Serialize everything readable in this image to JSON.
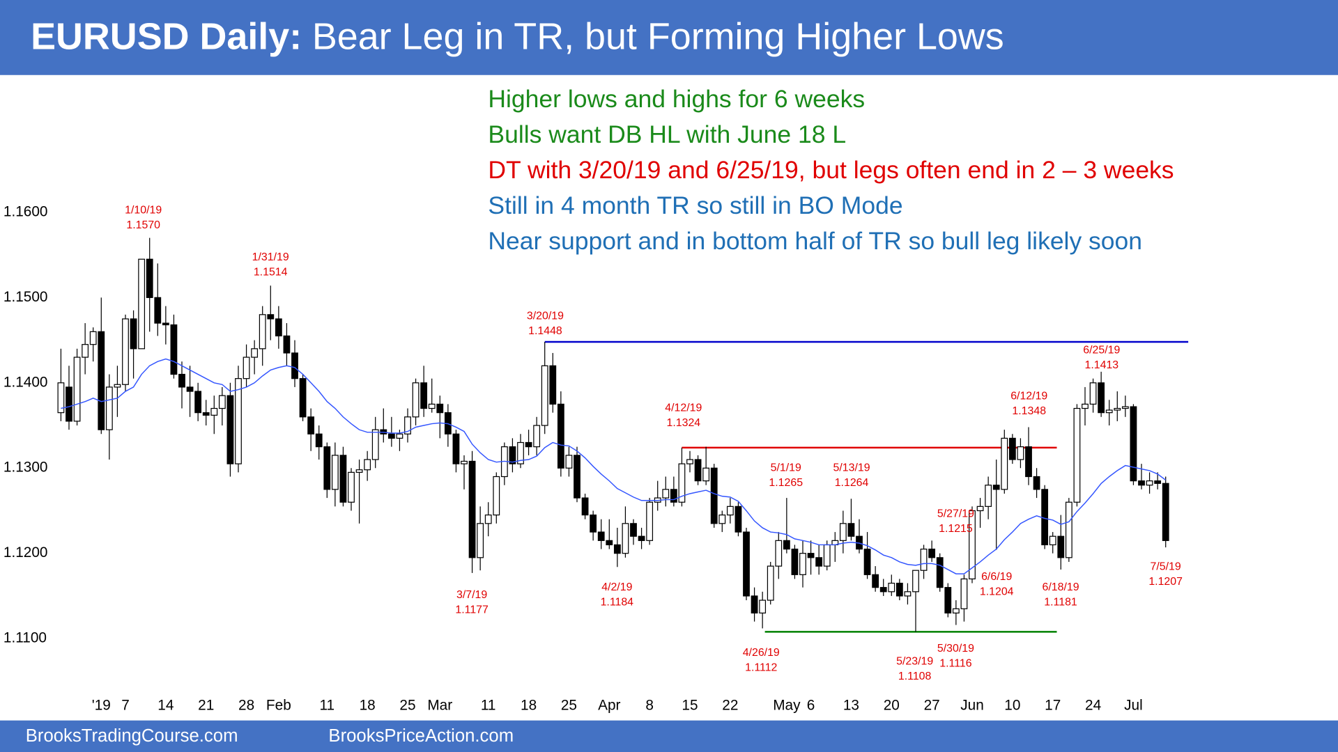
{
  "chart_data": {
    "type": "candlestick",
    "title_lead": "EURUSD Daily:",
    "title": "Bear Leg in TR, but Forming Higher Lows",
    "notes": [
      {
        "text": "Higher lows and highs for 6 weeks",
        "color": "#1a8a1a"
      },
      {
        "text": "Bulls want DB HL with June 18 L",
        "color": "#1a8a1a"
      },
      {
        "text": "DT with 3/20/19 and 6/25/19, but legs often end in 2 – 3 weeks",
        "color": "#e00000"
      },
      {
        "text": "Still in 4 month TR so still in BO Mode",
        "color": "#1f6fb5"
      },
      {
        "text": "Near support and in bottom half of TR so bull leg likely soon",
        "color": "#1f6fb5"
      }
    ],
    "footer": [
      "BrooksTradingCourse.com",
      "BrooksPriceAction.com"
    ],
    "up_color": "#ffffff",
    "down_color": "#000000",
    "ma_color": "#3355ff",
    "ylim": [
      1.1039,
      1.1761
    ],
    "yticks": [
      {
        "value": 1.16,
        "label": "1.1600"
      },
      {
        "value": 1.15,
        "label": "1.1500"
      },
      {
        "value": 1.14,
        "label": "1.1400"
      },
      {
        "value": 1.13,
        "label": "1.1300"
      },
      {
        "value": 1.12,
        "label": "1.1200"
      },
      {
        "value": 1.11,
        "label": "1.1100"
      }
    ],
    "xticks": [
      {
        "value": 5,
        "label": "'19"
      },
      {
        "value": 8,
        "label": "7"
      },
      {
        "value": 13,
        "label": "14"
      },
      {
        "value": 18,
        "label": "21"
      },
      {
        "value": 23,
        "label": "28"
      },
      {
        "value": 27,
        "label": "Feb"
      },
      {
        "value": 33,
        "label": "11"
      },
      {
        "value": 38,
        "label": "18"
      },
      {
        "value": 43,
        "label": "25"
      },
      {
        "value": 47,
        "label": "Mar"
      },
      {
        "value": 53,
        "label": "11"
      },
      {
        "value": 58,
        "label": "18"
      },
      {
        "value": 63,
        "label": "25"
      },
      {
        "value": 68,
        "label": "Apr"
      },
      {
        "value": 73,
        "label": "8"
      },
      {
        "value": 78,
        "label": "15"
      },
      {
        "value": 83,
        "label": "22"
      },
      {
        "value": 90,
        "label": "May"
      },
      {
        "value": 93,
        "label": "6"
      },
      {
        "value": 98,
        "label": "13"
      },
      {
        "value": 103,
        "label": "20"
      },
      {
        "value": 108,
        "label": "27"
      },
      {
        "value": 113,
        "label": "Jun"
      },
      {
        "value": 118,
        "label": "10"
      },
      {
        "value": 123,
        "label": "17"
      },
      {
        "value": 128,
        "label": "24"
      },
      {
        "value": 133,
        "label": "Jul"
      }
    ],
    "ohlc": [
      [
        1.1365,
        1.144,
        1.1355,
        1.14
      ],
      [
        1.1395,
        1.142,
        1.1345,
        1.1355
      ],
      [
        1.1355,
        1.144,
        1.135,
        1.143
      ],
      [
        1.143,
        1.147,
        1.141,
        1.1445
      ],
      [
        1.1445,
        1.1465,
        1.1425,
        1.146
      ],
      [
        1.146,
        1.15,
        1.134,
        1.1345
      ],
      [
        1.1345,
        1.141,
        1.131,
        1.1395
      ],
      [
        1.1395,
        1.142,
        1.136,
        1.1398
      ],
      [
        1.1398,
        1.148,
        1.139,
        1.1475
      ],
      [
        1.1475,
        1.1485,
        1.1405,
        1.144
      ],
      [
        1.144,
        1.1545,
        1.144,
        1.1545
      ],
      [
        1.1545,
        1.157,
        1.146,
        1.15
      ],
      [
        1.15,
        1.154,
        1.1455,
        1.147
      ],
      [
        1.147,
        1.149,
        1.1445,
        1.1468
      ],
      [
        1.1468,
        1.148,
        1.1405,
        1.141
      ],
      [
        1.141,
        1.1425,
        1.137,
        1.1395
      ],
      [
        1.1395,
        1.142,
        1.136,
        1.139
      ],
      [
        1.139,
        1.14,
        1.1355,
        1.1365
      ],
      [
        1.1365,
        1.138,
        1.135,
        1.1362
      ],
      [
        1.1362,
        1.1385,
        1.134,
        1.137
      ],
      [
        1.137,
        1.1395,
        1.135,
        1.1385
      ],
      [
        1.1385,
        1.14,
        1.129,
        1.1305
      ],
      [
        1.1305,
        1.142,
        1.1295,
        1.1405
      ],
      [
        1.1405,
        1.1445,
        1.1395,
        1.143
      ],
      [
        1.143,
        1.145,
        1.141,
        1.144
      ],
      [
        1.144,
        1.149,
        1.142,
        1.148
      ],
      [
        1.148,
        1.1514,
        1.145,
        1.1475
      ],
      [
        1.1475,
        1.149,
        1.144,
        1.1455
      ],
      [
        1.1455,
        1.147,
        1.142,
        1.1435
      ],
      [
        1.1435,
        1.145,
        1.1395,
        1.1405
      ],
      [
        1.1405,
        1.141,
        1.1355,
        1.136
      ],
      [
        1.136,
        1.137,
        1.132,
        1.134
      ],
      [
        1.134,
        1.135,
        1.131,
        1.1325
      ],
      [
        1.1325,
        1.133,
        1.1265,
        1.1275
      ],
      [
        1.1275,
        1.133,
        1.1255,
        1.1315
      ],
      [
        1.1315,
        1.1325,
        1.1255,
        1.126
      ],
      [
        1.126,
        1.13,
        1.125,
        1.1295
      ],
      [
        1.1295,
        1.131,
        1.1235,
        1.1298
      ],
      [
        1.1298,
        1.132,
        1.1285,
        1.131
      ],
      [
        1.131,
        1.136,
        1.13,
        1.1345
      ],
      [
        1.1345,
        1.137,
        1.133,
        1.134
      ],
      [
        1.134,
        1.136,
        1.1325,
        1.1335
      ],
      [
        1.1335,
        1.1345,
        1.132,
        1.134
      ],
      [
        1.134,
        1.137,
        1.133,
        1.136
      ],
      [
        1.136,
        1.1405,
        1.135,
        1.14
      ],
      [
        1.14,
        1.142,
        1.136,
        1.137
      ],
      [
        1.137,
        1.1405,
        1.1365,
        1.1375
      ],
      [
        1.1375,
        1.1385,
        1.1335,
        1.1365
      ],
      [
        1.1365,
        1.1375,
        1.1325,
        1.134
      ],
      [
        1.134,
        1.1345,
        1.1295,
        1.1305
      ],
      [
        1.1305,
        1.1315,
        1.1275,
        1.1308
      ],
      [
        1.1308,
        1.132,
        1.1177,
        1.1195
      ],
      [
        1.1195,
        1.1255,
        1.118,
        1.1235
      ],
      [
        1.1235,
        1.126,
        1.122,
        1.1245
      ],
      [
        1.1245,
        1.1295,
        1.1235,
        1.129
      ],
      [
        1.129,
        1.133,
        1.128,
        1.1325
      ],
      [
        1.1325,
        1.1335,
        1.1295,
        1.1305
      ],
      [
        1.1305,
        1.134,
        1.13,
        1.133
      ],
      [
        1.133,
        1.1345,
        1.1315,
        1.1325
      ],
      [
        1.1325,
        1.136,
        1.1315,
        1.135
      ],
      [
        1.135,
        1.1448,
        1.134,
        1.142
      ],
      [
        1.142,
        1.1435,
        1.1365,
        1.1375
      ],
      [
        1.1375,
        1.139,
        1.129,
        1.13
      ],
      [
        1.13,
        1.1325,
        1.129,
        1.1315
      ],
      [
        1.1315,
        1.1325,
        1.126,
        1.1265
      ],
      [
        1.1265,
        1.127,
        1.124,
        1.1245
      ],
      [
        1.1245,
        1.125,
        1.1215,
        1.1225
      ],
      [
        1.1225,
        1.124,
        1.1205,
        1.1215
      ],
      [
        1.1215,
        1.124,
        1.1205,
        1.121
      ],
      [
        1.121,
        1.123,
        1.1184,
        1.12
      ],
      [
        1.12,
        1.1255,
        1.1195,
        1.1235
      ],
      [
        1.1235,
        1.124,
        1.121,
        1.122
      ],
      [
        1.122,
        1.123,
        1.1205,
        1.1215
      ],
      [
        1.1215,
        1.1265,
        1.121,
        1.126
      ],
      [
        1.126,
        1.1285,
        1.125,
        1.1265
      ],
      [
        1.1265,
        1.129,
        1.1255,
        1.1275
      ],
      [
        1.1275,
        1.129,
        1.1255,
        1.126
      ],
      [
        1.126,
        1.1324,
        1.1255,
        1.1305
      ],
      [
        1.1305,
        1.132,
        1.1295,
        1.131
      ],
      [
        1.131,
        1.1315,
        1.128,
        1.1285
      ],
      [
        1.1285,
        1.1325,
        1.128,
        1.13
      ],
      [
        1.13,
        1.1305,
        1.123,
        1.1235
      ],
      [
        1.1235,
        1.125,
        1.1225,
        1.1245
      ],
      [
        1.1245,
        1.1265,
        1.1235,
        1.1255
      ],
      [
        1.1255,
        1.126,
        1.122,
        1.1225
      ],
      [
        1.1225,
        1.123,
        1.1145,
        1.115
      ],
      [
        1.115,
        1.116,
        1.112,
        1.113
      ],
      [
        1.113,
        1.1155,
        1.1112,
        1.1145
      ],
      [
        1.1145,
        1.119,
        1.114,
        1.1185
      ],
      [
        1.1185,
        1.1225,
        1.117,
        1.1215
      ],
      [
        1.1215,
        1.1265,
        1.12,
        1.1205
      ],
      [
        1.1205,
        1.121,
        1.117,
        1.1175
      ],
      [
        1.1175,
        1.1215,
        1.116,
        1.12
      ],
      [
        1.12,
        1.1215,
        1.1175,
        1.1195
      ],
      [
        1.1195,
        1.121,
        1.1175,
        1.1185
      ],
      [
        1.1185,
        1.1215,
        1.118,
        1.121
      ],
      [
        1.121,
        1.1225,
        1.119,
        1.1215
      ],
      [
        1.1215,
        1.125,
        1.12,
        1.1235
      ],
      [
        1.1235,
        1.1264,
        1.1215,
        1.122
      ],
      [
        1.122,
        1.124,
        1.12,
        1.1205
      ],
      [
        1.1205,
        1.1225,
        1.117,
        1.1175
      ],
      [
        1.1175,
        1.1185,
        1.1155,
        1.116
      ],
      [
        1.116,
        1.117,
        1.115,
        1.1155
      ],
      [
        1.1155,
        1.1175,
        1.115,
        1.1165
      ],
      [
        1.1165,
        1.117,
        1.1145,
        1.115
      ],
      [
        1.115,
        1.1165,
        1.114,
        1.1155
      ],
      [
        1.1155,
        1.1175,
        1.1108,
        1.118
      ],
      [
        1.118,
        1.121,
        1.117,
        1.1205
      ],
      [
        1.1205,
        1.1215,
        1.119,
        1.1195
      ],
      [
        1.1195,
        1.12,
        1.1155,
        1.116
      ],
      [
        1.116,
        1.1165,
        1.1125,
        1.113
      ],
      [
        1.113,
        1.1145,
        1.1116,
        1.1135
      ],
      [
        1.1135,
        1.1175,
        1.112,
        1.117
      ],
      [
        1.117,
        1.1255,
        1.1165,
        1.125
      ],
      [
        1.125,
        1.1265,
        1.123,
        1.1255
      ],
      [
        1.1255,
        1.129,
        1.124,
        1.128
      ],
      [
        1.128,
        1.131,
        1.1204,
        1.1275
      ],
      [
        1.1275,
        1.1345,
        1.127,
        1.1335
      ],
      [
        1.1335,
        1.134,
        1.1305,
        1.131
      ],
      [
        1.131,
        1.1335,
        1.13,
        1.1325
      ],
      [
        1.1325,
        1.1348,
        1.128,
        1.129
      ],
      [
        1.129,
        1.13,
        1.1265,
        1.1275
      ],
      [
        1.1275,
        1.128,
        1.1205,
        1.121
      ],
      [
        1.121,
        1.1225,
        1.12,
        1.122
      ],
      [
        1.122,
        1.1245,
        1.1181,
        1.1195
      ],
      [
        1.1195,
        1.1265,
        1.119,
        1.126
      ],
      [
        1.126,
        1.1375,
        1.1255,
        1.137
      ],
      [
        1.137,
        1.1395,
        1.135,
        1.1375
      ],
      [
        1.1375,
        1.1405,
        1.1365,
        1.14
      ],
      [
        1.14,
        1.1413,
        1.136,
        1.1365
      ],
      [
        1.1365,
        1.138,
        1.135,
        1.1368
      ],
      [
        1.1368,
        1.139,
        1.1355,
        1.137
      ],
      [
        1.137,
        1.1385,
        1.136,
        1.1372
      ],
      [
        1.1372,
        1.1375,
        1.128,
        1.1285
      ],
      [
        1.1285,
        1.1305,
        1.1275,
        1.128
      ],
      [
        1.128,
        1.1295,
        1.127,
        1.1285
      ],
      [
        1.1285,
        1.1295,
        1.1275,
        1.1282
      ],
      [
        1.1282,
        1.129,
        1.1207,
        1.1215
      ]
    ],
    "ma": [
      1.137,
      1.1372,
      1.1375,
      1.1378,
      1.1382,
      1.1378,
      1.138,
      1.1382,
      1.139,
      1.1395,
      1.141,
      1.142,
      1.1425,
      1.1428,
      1.1425,
      1.142,
      1.1415,
      1.141,
      1.1405,
      1.14,
      1.1398,
      1.139,
      1.1392,
      1.1395,
      1.14,
      1.1408,
      1.1415,
      1.1418,
      1.142,
      1.1418,
      1.141,
      1.14,
      1.139,
      1.1378,
      1.137,
      1.136,
      1.1352,
      1.1345,
      1.1342,
      1.1342,
      1.1342,
      1.1341,
      1.1341,
      1.1343,
      1.1348,
      1.135,
      1.1352,
      1.1353,
      1.1352,
      1.1348,
      1.1343,
      1.1328,
      1.1318,
      1.131,
      1.1307,
      1.1308,
      1.1307,
      1.1309,
      1.131,
      1.1314,
      1.1324,
      1.133,
      1.1327,
      1.1326,
      1.132,
      1.1312,
      1.1302,
      1.1293,
      1.1285,
      1.1276,
      1.1271,
      1.1266,
      1.1262,
      1.1262,
      1.1262,
      1.1263,
      1.1263,
      1.1267,
      1.127,
      1.1272,
      1.1274,
      1.127,
      1.1267,
      1.1266,
      1.1261,
      1.125,
      1.1238,
      1.123,
      1.1225,
      1.1224,
      1.1222,
      1.1217,
      1.1215,
      1.1213,
      1.121,
      1.121,
      1.121,
      1.1212,
      1.1213,
      1.1212,
      1.1209,
      1.1204,
      1.1198,
      1.1195,
      1.119,
      1.1187,
      1.1186,
      1.1188,
      1.1188,
      1.1186,
      1.1181,
      1.1176,
      1.1176,
      1.1183,
      1.119,
      1.1198,
      1.1205,
      1.1216,
      1.1225,
      1.1235,
      1.124,
      1.1244,
      1.1241,
      1.1239,
      1.1234,
      1.1237,
      1.1249,
      1.1259,
      1.127,
      1.1282,
      1.129,
      1.1297,
      1.1303,
      1.1301,
      1.1299,
      1.1297,
      1.1293,
      1.1286
    ],
    "levels": [
      {
        "value": 1.1448,
        "color": "#0000cc"
      },
      {
        "value": 1.1324,
        "color": "#e00000"
      },
      {
        "value": 1.1108,
        "color": "#008000"
      }
    ],
    "annotations": [
      {
        "date": "1/10/19",
        "value": 1.157,
        "label": "1.1570"
      },
      {
        "date": "1/31/19",
        "value": 1.1514,
        "label": "1.1514"
      },
      {
        "date": "3/20/19",
        "value": 1.1448,
        "label": "1.1448"
      },
      {
        "date": "4/12/19",
        "value": 1.1324,
        "label": "1.1324"
      },
      {
        "date": "5/1/19",
        "value": 1.1265,
        "label": "1.1265"
      },
      {
        "date": "5/13/19",
        "value": 1.1264,
        "label": "1.1264"
      },
      {
        "date": "5/27/19",
        "value": 1.1215,
        "label": "1.1215"
      },
      {
        "date": "6/12/19",
        "value": 1.1348,
        "label": "1.1348"
      },
      {
        "date": "6/25/19",
        "value": 1.1413,
        "label": "1.1413"
      },
      {
        "date": "3/7/19",
        "value": 1.1177,
        "label": "1.1177"
      },
      {
        "date": "4/2/19",
        "value": 1.1184,
        "label": "1.1184"
      },
      {
        "date": "4/26/19",
        "value": 1.1112,
        "label": "1.1112"
      },
      {
        "date": "5/23/19",
        "value": 1.1108,
        "label": "1.1108"
      },
      {
        "date": "5/30/19",
        "value": 1.1116,
        "label": "1.1116"
      },
      {
        "date": "6/6/19",
        "value": 1.1204,
        "label": "1.1204"
      },
      {
        "date": "6/18/19",
        "value": 1.1181,
        "label": "1.1181"
      },
      {
        "date": "7/5/19",
        "value": 1.1207,
        "label": "1.1207"
      }
    ]
  }
}
